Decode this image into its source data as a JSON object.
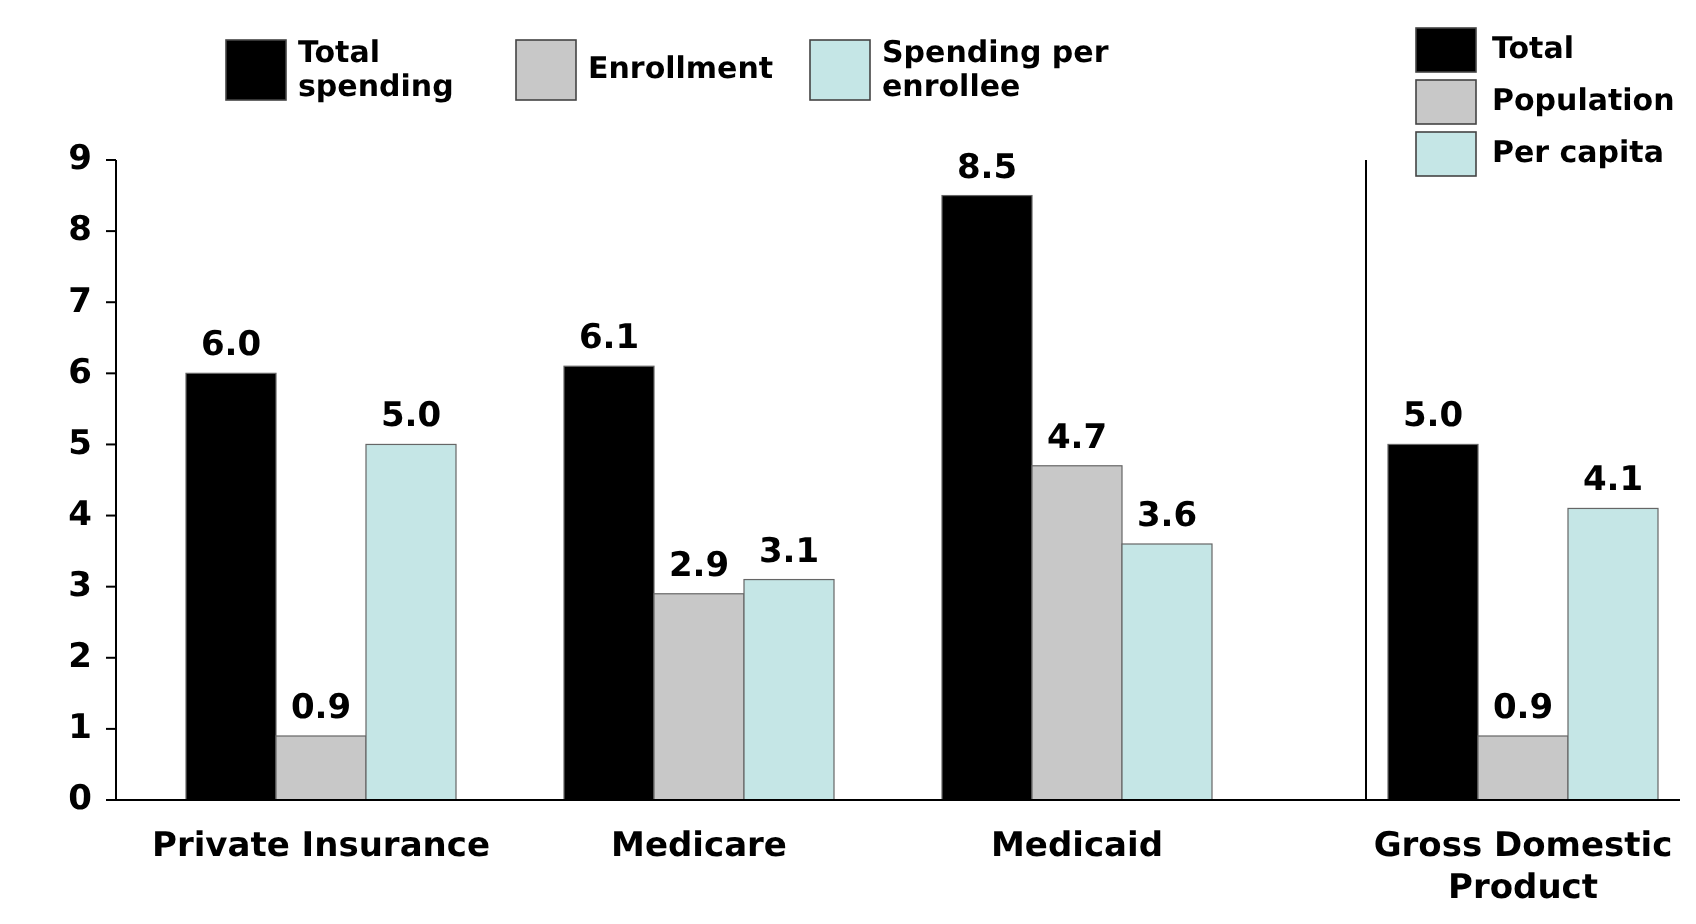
{
  "chart_data": [
    {
      "type": "bar",
      "categories": [
        "Private Insurance",
        "Medicare",
        "Medicaid"
      ],
      "series": [
        {
          "name": "Total spending",
          "color": "#000000",
          "values": [
            6.0,
            6.1,
            8.5
          ],
          "value_labels": [
            "6.0",
            "6.1",
            "8.5"
          ]
        },
        {
          "name": "Enrollment",
          "color": "#c8c8c8",
          "values": [
            0.9,
            2.9,
            4.7
          ],
          "value_labels": [
            "0.9",
            "2.9",
            "4.7"
          ]
        },
        {
          "name": "Spending per enrollee",
          "color": "#c5e6e6",
          "values": [
            5.0,
            3.1,
            3.6
          ],
          "value_labels": [
            "5.0",
            "3.1",
            "3.6"
          ]
        }
      ],
      "ylim": [
        0,
        9
      ],
      "yticks": [
        0,
        1,
        2,
        3,
        4,
        5,
        6,
        7,
        8,
        9
      ],
      "legend": "top",
      "grid": false
    },
    {
      "type": "bar",
      "categories": [
        "Gross Domestic Product"
      ],
      "series": [
        {
          "name": "Total",
          "color": "#000000",
          "values": [
            5.0
          ],
          "value_labels": [
            "5.0"
          ]
        },
        {
          "name": "Population",
          "color": "#c8c8c8",
          "values": [
            0.9
          ],
          "value_labels": [
            "0.9"
          ]
        },
        {
          "name": "Per capita",
          "color": "#c5e6e6",
          "values": [
            4.1
          ],
          "value_labels": [
            "4.1"
          ]
        }
      ],
      "ylim": [
        0,
        9
      ],
      "yticks": [
        0,
        1,
        2,
        3,
        4,
        5,
        6,
        7,
        8,
        9
      ],
      "tick_labels": "x",
      "legend": "top right",
      "grid": false
    }
  ]
}
